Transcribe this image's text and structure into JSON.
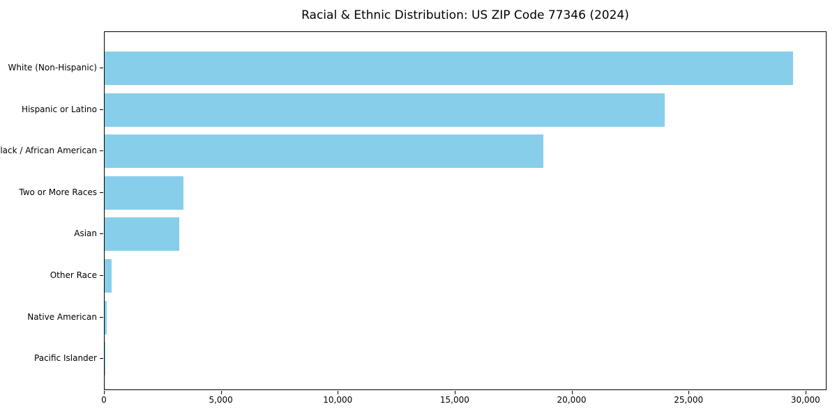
{
  "chart_data": {
    "type": "bar",
    "orientation": "horizontal",
    "title": "Racial & Ethnic Distribution: US ZIP Code 77346 (2024)",
    "categories": [
      "White (Non-Hispanic)",
      "Hispanic or Latino",
      "Black / African American",
      "Two or More Races",
      "Asian",
      "Other Race",
      "Native American",
      "Pacific Islander"
    ],
    "values": [
      29450,
      23940,
      18770,
      3360,
      3180,
      300,
      100,
      30
    ],
    "xlabel": "",
    "ylabel": "",
    "xlim": [
      0,
      30900
    ],
    "xticks": [
      0,
      5000,
      10000,
      15000,
      20000,
      25000,
      30000
    ],
    "xtick_labels": [
      "0",
      "5,000",
      "10,000",
      "15,000",
      "20,000",
      "25,000",
      "30,000"
    ],
    "bar_color": "#87CEEB",
    "grid": "off",
    "legend": "none",
    "frame": "full-box"
  }
}
